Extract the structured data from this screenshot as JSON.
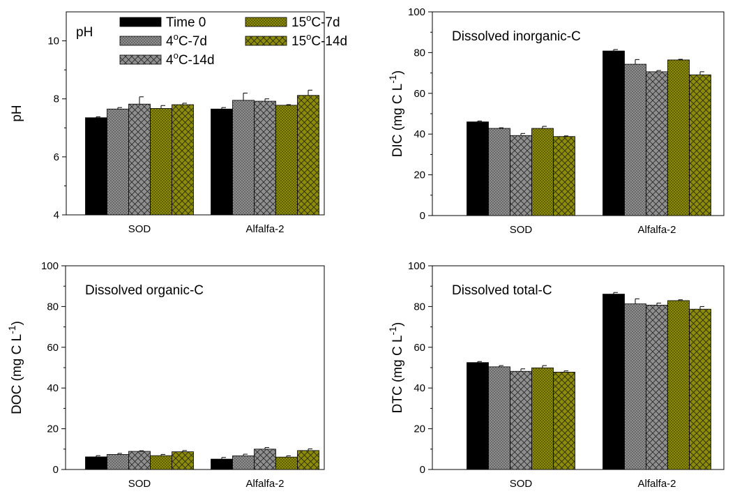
{
  "figure": {
    "groups": [
      "SOD",
      "Alfalfa-2"
    ],
    "colors": {
      "black": "#000000",
      "gray": "#8f8f8f",
      "olive": "#8c8c0a",
      "olive_dots": "#2f2f00",
      "gray_dots": "#4a4a4a"
    }
  },
  "chart_data": [
    {
      "type": "bar",
      "panel": "pH",
      "title": "pH",
      "ylabel": "pH",
      "ylim": [
        4,
        11
      ],
      "yticks": [
        4,
        6,
        8,
        10
      ],
      "categories": [
        "SOD",
        "Alfalfa-2"
      ],
      "legend": {
        "placement": "top"
      },
      "series": [
        {
          "name": "Time 0",
          "pattern": "solid",
          "values": [
            7.35,
            7.65
          ],
          "errors": [
            0.03,
            0.05
          ]
        },
        {
          "name": "4oC-7d",
          "pattern": "gray-dots",
          "values": [
            7.65,
            7.95
          ],
          "errors": [
            0.05,
            0.25
          ]
        },
        {
          "name": "4oC-14d",
          "pattern": "gray-cross",
          "values": [
            7.82,
            7.92
          ],
          "errors": [
            0.25,
            0.08
          ]
        },
        {
          "name": "15oC-7d",
          "pattern": "olive-dots",
          "values": [
            7.67,
            7.78
          ],
          "errors": [
            0.1,
            0.02
          ]
        },
        {
          "name": "15oC-14d",
          "pattern": "olive-cross",
          "values": [
            7.8,
            8.12
          ],
          "errors": [
            0.05,
            0.18
          ]
        }
      ]
    },
    {
      "type": "bar",
      "panel": "DIC",
      "title": "Dissolved inorganic-C",
      "ylabel": "DIC (mg C L-1)",
      "ylabel_main": "DIC (mg C L",
      "ylabel_sup": "-1",
      "ylabel_close": ")",
      "ylim": [
        0,
        100
      ],
      "yticks": [
        0,
        20,
        40,
        60,
        80,
        100
      ],
      "categories": [
        "SOD",
        "Alfalfa-2"
      ],
      "series": [
        {
          "pattern": "solid",
          "values": [
            46,
            80.8
          ],
          "errors": [
            0.4,
            0.7
          ]
        },
        {
          "pattern": "gray-dots",
          "values": [
            42.8,
            74.3
          ],
          "errors": [
            0.3,
            2.3
          ]
        },
        {
          "pattern": "gray-cross",
          "values": [
            39.3,
            70.6
          ],
          "errors": [
            1.0,
            0.6
          ]
        },
        {
          "pattern": "olive-dots",
          "values": [
            42.8,
            76.4
          ],
          "errors": [
            1.0,
            0.3
          ]
        },
        {
          "pattern": "olive-cross",
          "values": [
            38.8,
            69.1
          ],
          "errors": [
            0.3,
            1.5
          ]
        }
      ]
    },
    {
      "type": "bar",
      "panel": "DOC",
      "title": "Dissolved organic-C",
      "ylabel": "DOC (mg C L-1)",
      "ylabel_main": "DOC (mg C L",
      "ylabel_sup": "-1",
      "ylabel_close": ")",
      "ylim": [
        0,
        100
      ],
      "yticks": [
        0,
        20,
        40,
        60,
        80,
        100
      ],
      "categories": [
        "SOD",
        "Alfalfa-2"
      ],
      "series": [
        {
          "pattern": "solid",
          "values": [
            6.2,
            5.1
          ],
          "errors": [
            0.6,
            0.8
          ]
        },
        {
          "pattern": "gray-dots",
          "values": [
            7.4,
            6.7
          ],
          "errors": [
            0.5,
            0.8
          ]
        },
        {
          "pattern": "gray-cross",
          "values": [
            8.9,
            10.0
          ],
          "errors": [
            0.3,
            0.8
          ]
        },
        {
          "pattern": "olive-dots",
          "values": [
            6.8,
            6.1
          ],
          "errors": [
            0.6,
            0.6
          ]
        },
        {
          "pattern": "olive-cross",
          "values": [
            8.7,
            9.3
          ],
          "errors": [
            0.6,
            0.8
          ]
        }
      ]
    },
    {
      "type": "bar",
      "panel": "DTC",
      "title": "Dissolved total-C",
      "ylabel": "DTC (mg C L-1)",
      "ylabel_main": "DTC (mg C L",
      "ylabel_sup": "-1",
      "ylabel_close": ")",
      "ylim": [
        0,
        100
      ],
      "yticks": [
        0,
        20,
        40,
        60,
        80,
        100
      ],
      "categories": [
        "SOD",
        "Alfalfa-2"
      ],
      "series": [
        {
          "pattern": "solid",
          "values": [
            52.5,
            86.1
          ],
          "errors": [
            0.5,
            0.8
          ]
        },
        {
          "pattern": "gray-dots",
          "values": [
            50.4,
            81.3
          ],
          "errors": [
            0.6,
            2.5
          ]
        },
        {
          "pattern": "gray-cross",
          "values": [
            48.2,
            80.7
          ],
          "errors": [
            1.2,
            1.0
          ]
        },
        {
          "pattern": "olive-dots",
          "values": [
            49.9,
            82.9
          ],
          "errors": [
            1.1,
            0.4
          ]
        },
        {
          "pattern": "olive-cross",
          "values": [
            47.8,
            78.7
          ],
          "errors": [
            0.6,
            1.3
          ]
        }
      ]
    }
  ]
}
